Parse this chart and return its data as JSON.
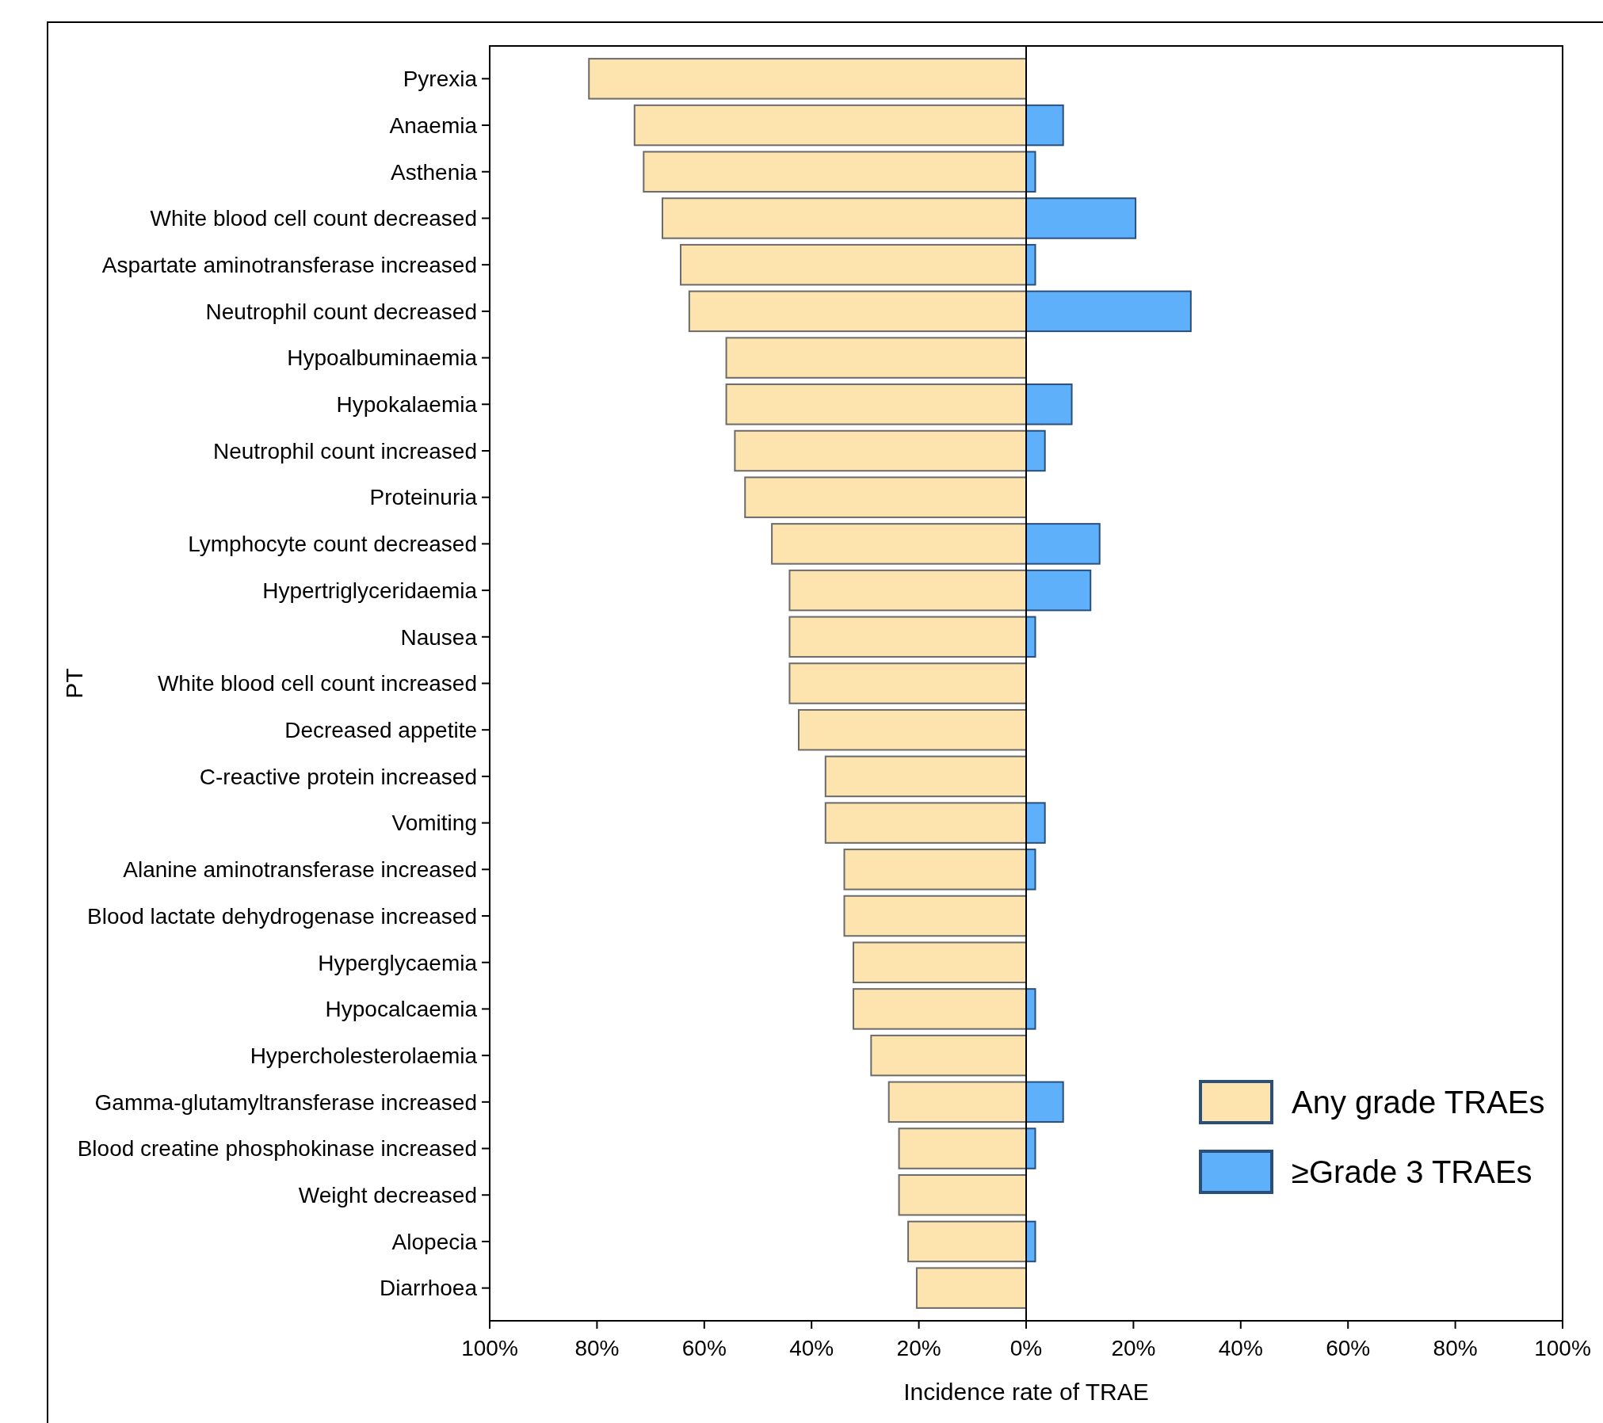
{
  "chart_data": {
    "type": "bar",
    "orientation": "horizontal",
    "stacked": true,
    "xlabel": "Incidence rate of TRAE",
    "ylabel": "PT",
    "categories": [
      "Pyrexia",
      "Anaemia",
      "Asthenia",
      "White blood cell count decreased",
      "Aspartate aminotransferase increased",
      "Neutrophil count decreased",
      "Hypoalbuminaemia",
      "Hypokalaemia",
      "Neutrophil count increased",
      "Proteinuria",
      "Lymphocyte count decreased",
      "Hypertriglyceridaemia",
      "Nausea",
      "White blood cell count increased",
      "Decreased appetite",
      "C-reactive protein increased",
      "Vomiting",
      "Alanine aminotransferase increased",
      "Blood lactate dehydrogenase increased",
      "Hyperglycaemia",
      "Hypocalcaemia",
      "Hypercholesterolaemia",
      "Gamma-glutamyltransferase increased",
      "Blood creatine phosphokinase increased",
      "Weight decreased",
      "Alopecia",
      "Diarrhoea"
    ],
    "series": [
      {
        "name": "Any grade TRAEs",
        "color": "#fde3ae",
        "values": [
          -81.5,
          -73.0,
          -71.3,
          -67.8,
          -64.4,
          -62.8,
          -55.9,
          -55.9,
          -54.3,
          -52.4,
          -47.4,
          -44.1,
          -44.1,
          -44.1,
          -42.4,
          -37.4,
          -37.4,
          -33.9,
          -33.9,
          -32.2,
          -32.2,
          -28.9,
          -25.6,
          -23.7,
          -23.7,
          -22.0,
          -20.4
        ]
      },
      {
        "name": "≥Grade 3 TRAEs",
        "color": "#5eb0fb",
        "values": [
          null,
          6.9,
          1.7,
          20.4,
          1.7,
          30.7,
          null,
          8.5,
          3.5,
          null,
          13.7,
          12.0,
          1.7,
          null,
          null,
          null,
          3.5,
          1.7,
          null,
          null,
          1.7,
          null,
          6.9,
          1.7,
          null,
          1.7,
          null
        ]
      }
    ],
    "xlim": [
      -100,
      100
    ],
    "xticks": [
      {
        "value": -100,
        "label": "100%"
      },
      {
        "value": -80,
        "label": "80%"
      },
      {
        "value": -60,
        "label": "60%"
      },
      {
        "value": -40,
        "label": "40%"
      },
      {
        "value": -20,
        "label": "20%"
      },
      {
        "value": 0,
        "label": "0%"
      },
      {
        "value": 20,
        "label": "20%"
      },
      {
        "value": 40,
        "label": "40%"
      },
      {
        "value": 60,
        "label": "60%"
      },
      {
        "value": 80,
        "label": "80%"
      },
      {
        "value": 100,
        "label": "100%"
      }
    ],
    "ref_lines": [
      {
        "axis": "x",
        "value": 0,
        "color": "#000000"
      }
    ],
    "legend": "bottom right",
    "grid": false
  }
}
